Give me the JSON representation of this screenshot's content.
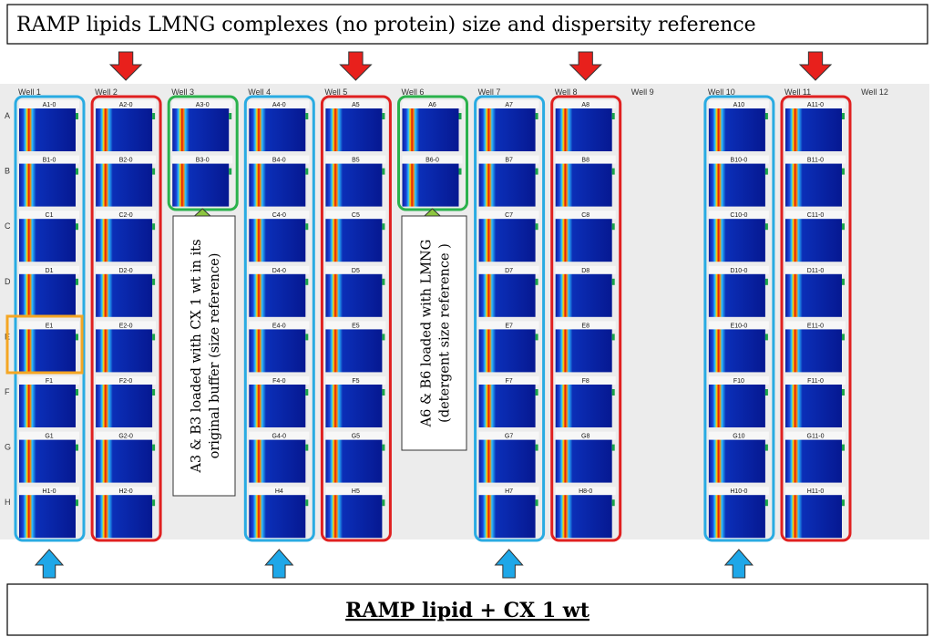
{
  "title": "RAMP lipids LMNG complexes (no protein) size and dispersity reference",
  "footer": "RAMP lipid + CX 1 wt",
  "rows": [
    "A",
    "B",
    "C",
    "D",
    "E",
    "F",
    "G",
    "H"
  ],
  "columns": [
    {
      "header": "Well 1",
      "wells": [
        "A1-0",
        "B1-0",
        "C1",
        "D1",
        "E1",
        "F1",
        "G1",
        "H1-0"
      ]
    },
    {
      "header": "Well 2",
      "wells": [
        "A2-0",
        "B2-0",
        "C2-0",
        "D2-0",
        "E2-0",
        "F2-0",
        "G2-0",
        "H2-0"
      ]
    },
    {
      "header": "Well 3",
      "wells": [
        "A3-0",
        "B3-0"
      ]
    },
    {
      "header": "Well 4",
      "wells": [
        "A4-0",
        "B4-0",
        "C4-0",
        "D4-0",
        "E4-0",
        "F4-0",
        "G4-0",
        "H4"
      ]
    },
    {
      "header": "Well 5",
      "wells": [
        "A5",
        "B5",
        "C5",
        "D5",
        "E5",
        "F5",
        "G5",
        "H5"
      ]
    },
    {
      "header": "Well 6",
      "wells": [
        "A6",
        "B6-0"
      ]
    },
    {
      "header": "Well 7",
      "wells": [
        "A7",
        "B7",
        "C7",
        "D7",
        "E7",
        "F7",
        "G7",
        "H7"
      ]
    },
    {
      "header": "Well 8",
      "wells": [
        "A8",
        "B8",
        "C8",
        "D8",
        "E8",
        "F8",
        "G8",
        "H8-0"
      ]
    },
    {
      "header": "Well 9",
      "wells": []
    },
    {
      "header": "Well 10",
      "wells": [
        "A10",
        "B10-0",
        "C10-0",
        "D10-0",
        "E10-0",
        "F10",
        "G10",
        "H10-0"
      ]
    },
    {
      "header": "Well 11",
      "wells": [
        "A11-0",
        "B11-0",
        "C11-0",
        "D11-0",
        "E11-0",
        "F11-0",
        "G11-0",
        "H11-0"
      ]
    },
    {
      "header": "Well 12",
      "wells": []
    }
  ],
  "annotations": [
    {
      "lines": [
        "A3 & B3 loaded with CX 1 wt in its",
        "original buffer (size reference)"
      ]
    },
    {
      "lines": [
        "A6 & B6 loaded with LMNG",
        "(detergent size reference )"
      ]
    }
  ]
}
